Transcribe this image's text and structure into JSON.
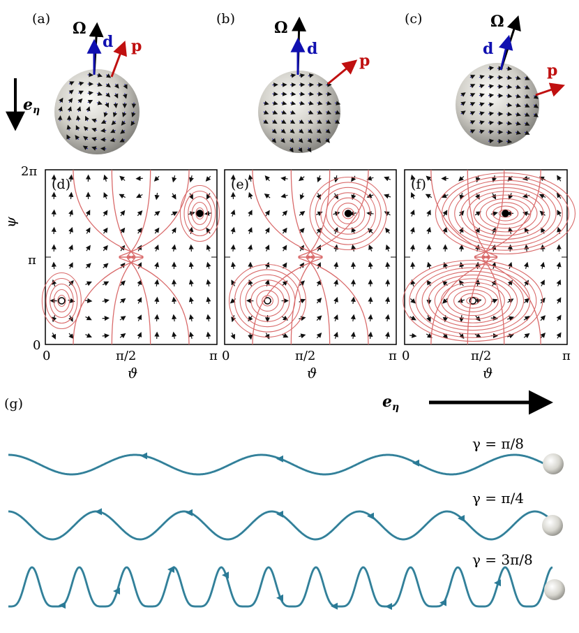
{
  "panels": {
    "top": [
      {
        "label": "(a)",
        "omega": "Ω",
        "d": "d",
        "p": "p"
      },
      {
        "label": "(b)",
        "omega": "Ω",
        "d": "d",
        "p": "p"
      },
      {
        "label": "(c)",
        "omega": "Ω",
        "d": "d",
        "p": "p"
      }
    ],
    "eta_label": "e",
    "eta_sub": "η"
  },
  "phase_plots": [
    {
      "label": "(d)",
      "centers": [
        [
          0.095,
          0.75
        ],
        [
          0.9,
          0.25
        ]
      ]
    },
    {
      "label": "(e)",
      "centers": [
        [
          0.25,
          0.75
        ],
        [
          0.72,
          0.25
        ]
      ]
    },
    {
      "label": "(f)",
      "centers": [
        [
          0.42,
          0.75
        ],
        [
          0.62,
          0.25
        ]
      ]
    }
  ],
  "axes": {
    "y_ticks": [
      "2π",
      "π",
      "0"
    ],
    "x_ticks": [
      "0",
      "π/2",
      "π"
    ],
    "x_label": "ϑ",
    "y_label": "ψ"
  },
  "trajectories": {
    "label": "(g)",
    "eta_label": "e",
    "eta_sub": "η",
    "rows": [
      {
        "gamma": "γ = π/8",
        "waves": 4.3,
        "amp": 0.28
      },
      {
        "gamma": "γ = π/4",
        "waves": 6.2,
        "amp": 0.62
      },
      {
        "gamma": "γ = 3π/8",
        "waves": 11.5,
        "amp": 1.0
      }
    ]
  },
  "colors": {
    "omega": "#000000",
    "d": "#1010b0",
    "p": "#c01010",
    "stream": "#d96a6a",
    "arrow": "#111111",
    "trajectory": "#3f8fa8",
    "sphere": "#d9d8d2"
  }
}
